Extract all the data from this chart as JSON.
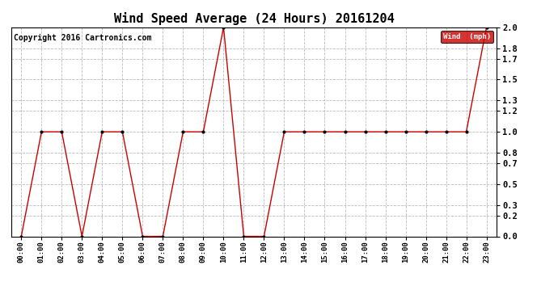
{
  "title": "Wind Speed Average (24 Hours) 20161204",
  "copyright": "Copyright 2016 Cartronics.com",
  "legend_label": "Wind  (mph)",
  "x_labels": [
    "00:00",
    "01:00",
    "02:00",
    "03:00",
    "04:00",
    "05:00",
    "06:00",
    "07:00",
    "08:00",
    "09:00",
    "10:00",
    "11:00",
    "12:00",
    "13:00",
    "14:00",
    "15:00",
    "16:00",
    "17:00",
    "18:00",
    "19:00",
    "20:00",
    "21:00",
    "22:00",
    "23:00"
  ],
  "y_values": [
    0.0,
    1.0,
    1.0,
    0.0,
    1.0,
    1.0,
    0.0,
    0.0,
    1.0,
    1.0,
    2.0,
    0.0,
    0.0,
    1.0,
    1.0,
    1.0,
    1.0,
    1.0,
    1.0,
    1.0,
    1.0,
    1.0,
    1.0,
    2.0
  ],
  "ylim": [
    0.0,
    2.0
  ],
  "yticks": [
    0.0,
    0.2,
    0.3,
    0.5,
    0.7,
    0.8,
    1.0,
    1.2,
    1.3,
    1.5,
    1.7,
    1.8,
    2.0
  ],
  "ytick_labels": [
    "0.0",
    "0.2",
    "0.3",
    "0.5",
    "0.7",
    "0.8",
    "1.0",
    "1.2",
    "1.3",
    "1.5",
    "1.7",
    "1.8",
    "2.0"
  ],
  "line_color": "#cc0000",
  "marker_color": "#000000",
  "background_color": "#ffffff",
  "grid_color": "#bbbbbb",
  "title_fontsize": 11,
  "copyright_fontsize": 7,
  "legend_bg": "#cc0000",
  "legend_text_color": "#ffffff",
  "fig_width": 6.9,
  "fig_height": 3.75,
  "dpi": 100
}
